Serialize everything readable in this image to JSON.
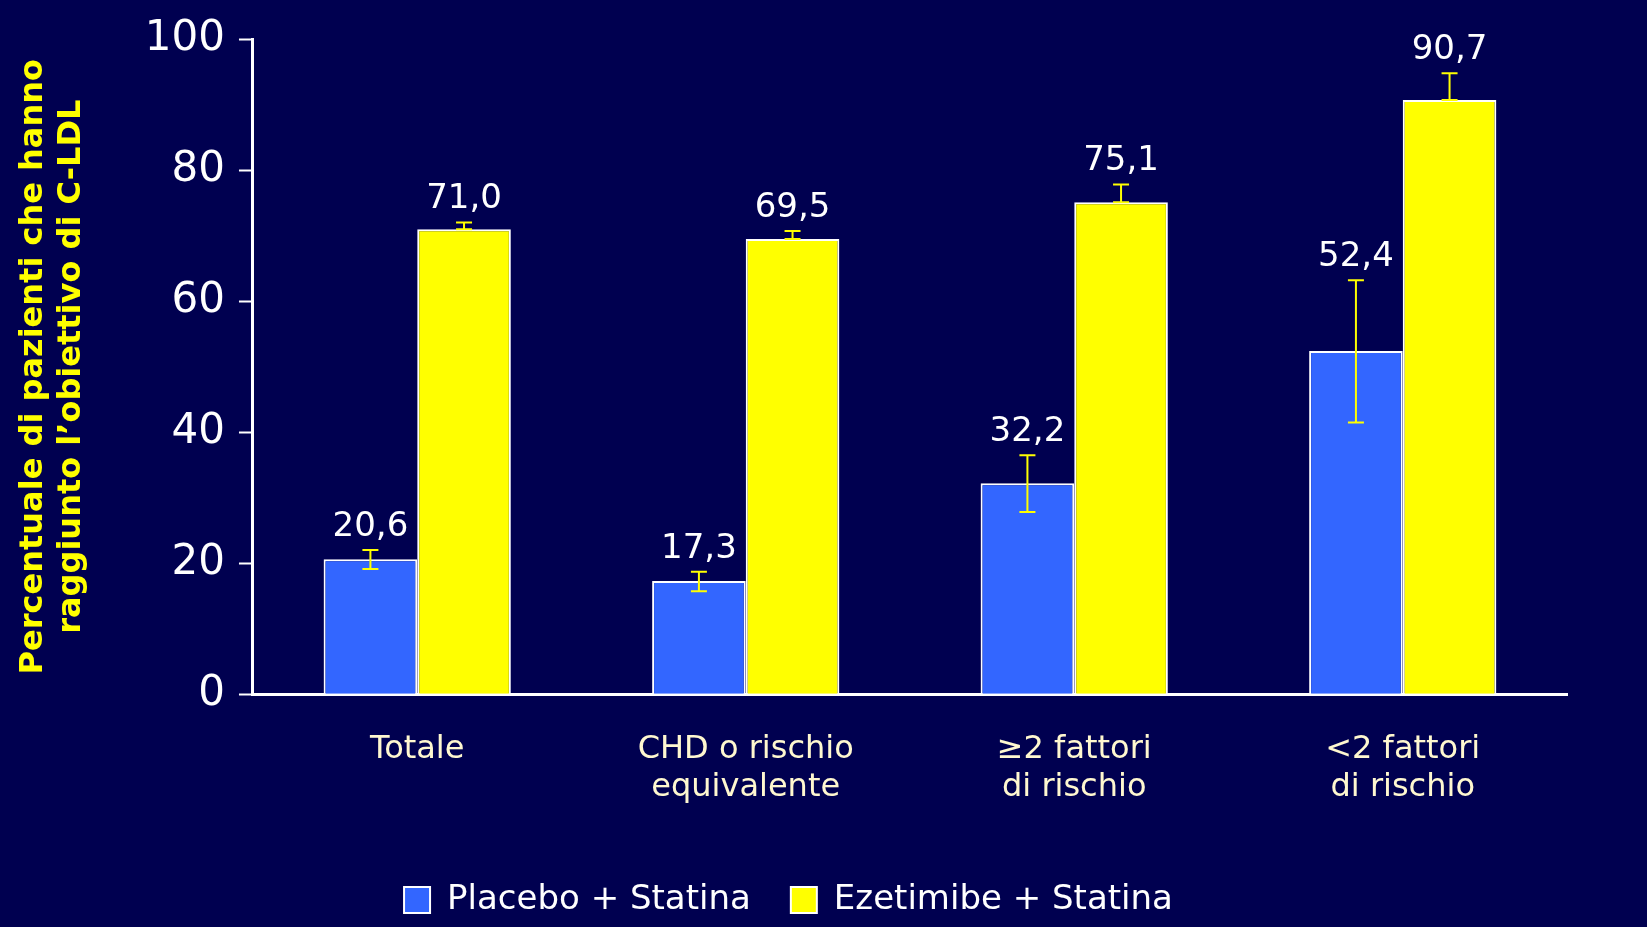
{
  "chart_data": {
    "type": "bar",
    "ylabel": "Percentuale di pazienti che hanno raggiunto l’obiettivo di C-LDL",
    "categories": [
      "Totale",
      "CHD o rischio equivalente",
      "≥2 fattori di rischio",
      "<2 fattori di rischio"
    ],
    "series": [
      {
        "name": "Placebo + Statina",
        "color": "#3366ff",
        "values": [
          20.6,
          17.3,
          32.2,
          52.4
        ],
        "errors": [
          [
            19.1,
            22.0
          ],
          [
            15.7,
            18.7
          ],
          [
            27.8,
            36.5
          ],
          [
            41.5,
            63.2
          ]
        ],
        "value_labels": [
          "20,6",
          "17,3",
          "32,2",
          "52,4"
        ]
      },
      {
        "name": "Ezetimibe + Statina",
        "color": "#ffff00",
        "values": [
          71.0,
          69.5,
          75.1,
          90.7
        ],
        "errors": [
          [
            71.0,
            72.0
          ],
          [
            69.5,
            70.7
          ],
          [
            75.1,
            77.8
          ],
          [
            90.7,
            94.8
          ]
        ],
        "value_labels": [
          "71,0",
          "69,5",
          "75,1",
          "90,7"
        ]
      }
    ],
    "ylim": [
      0,
      100
    ],
    "yticks": [
      0,
      20,
      40,
      60,
      80,
      100
    ],
    "grid": false,
    "legend": "bottom"
  }
}
